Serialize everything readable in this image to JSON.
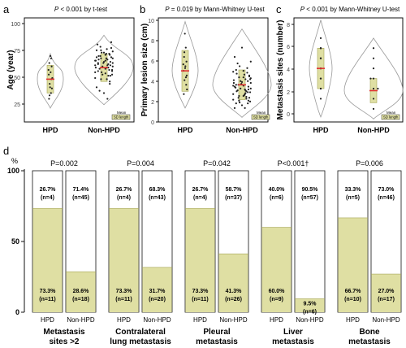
{
  "colors": {
    "fill": "#dfdfa3",
    "bar_stroke": "#a7a758",
    "violin": "#999999",
    "mean": "#e03131",
    "point": "#222222",
    "border": "#111111"
  },
  "panels": [
    {
      "letter": "a"
    },
    {
      "letter": "b"
    },
    {
      "letter": "c"
    },
    {
      "letter": "d"
    }
  ],
  "legend": {
    "mean_label": "Mean",
    "sd_label": "SD length"
  },
  "chart_data": [
    {
      "id": "a",
      "type": "violin",
      "title_pvalue": "P",
      "title_rest": " < 0.001 by t-test",
      "ylabel": "Age (year)",
      "yticks": [
        "100",
        "75",
        "50",
        "25"
      ],
      "ylim": [
        15,
        105
      ],
      "categories": [
        "HPD",
        "Non-HPD"
      ],
      "groups": [
        {
          "name": "HPD",
          "mean": 52,
          "sd": 12,
          "min": 27,
          "max": 74,
          "points": [
            [
              -0.1,
              35
            ],
            [
              0.05,
              40
            ],
            [
              0.12,
              44
            ],
            [
              -0.05,
              48
            ],
            [
              0.08,
              52
            ],
            [
              -0.12,
              56
            ],
            [
              0.02,
              58
            ],
            [
              0.1,
              63
            ],
            [
              -0.08,
              66
            ],
            [
              0.06,
              70
            ],
            [
              -0.02,
              45
            ],
            [
              0.15,
              53
            ],
            [
              -0.14,
              60
            ],
            [
              0.0,
              72
            ],
            [
              -0.06,
              38
            ]
          ]
        },
        {
          "name": "Non-HPD",
          "mean": 62,
          "sd": 12,
          "min": 30,
          "max": 90,
          "points": [
            [
              -0.25,
              45
            ],
            [
              0.2,
              48
            ],
            [
              -0.1,
              52
            ],
            [
              0.15,
              55
            ],
            [
              0.05,
              57
            ],
            [
              -0.3,
              58
            ],
            [
              0.28,
              60
            ],
            [
              -0.15,
              61
            ],
            [
              0.1,
              62
            ],
            [
              -0.05,
              63
            ],
            [
              0.22,
              64
            ],
            [
              -0.2,
              65
            ],
            [
              0.3,
              66
            ],
            [
              0.0,
              67
            ],
            [
              -0.28,
              68
            ],
            [
              0.12,
              69
            ],
            [
              -0.1,
              70
            ],
            [
              0.25,
              71
            ],
            [
              -0.18,
              72
            ],
            [
              0.05,
              73
            ],
            [
              0.18,
              74
            ],
            [
              -0.08,
              75
            ],
            [
              0.3,
              76
            ],
            [
              -0.25,
              77
            ],
            [
              0.1,
              78
            ],
            [
              -0.12,
              80
            ],
            [
              0.2,
              50
            ],
            [
              -0.3,
              53
            ],
            [
              0.28,
              56
            ],
            [
              -0.2,
              59
            ],
            [
              0.15,
              62
            ],
            [
              -0.02,
              66
            ],
            [
              0.08,
              70
            ],
            [
              -0.22,
              82
            ],
            [
              0.25,
              84
            ],
            [
              0.0,
              40
            ],
            [
              -0.15,
              42
            ],
            [
              0.12,
              35
            ],
            [
              0.3,
              63
            ],
            [
              -0.3,
              64
            ],
            [
              0.05,
              68
            ],
            [
              0.18,
              60
            ],
            [
              -0.08,
              58
            ],
            [
              0.22,
              55
            ],
            [
              -0.12,
              72
            ],
            [
              0.0,
              75
            ],
            [
              0.3,
              70
            ],
            [
              -0.28,
              62
            ],
            [
              0.15,
              65
            ],
            [
              -0.18,
              69
            ],
            [
              0.08,
              74
            ],
            [
              0.22,
              67
            ],
            [
              -0.05,
              56
            ],
            [
              0.1,
              52
            ],
            [
              -0.25,
              71
            ],
            [
              0.28,
              59
            ],
            [
              -0.1,
              77
            ],
            [
              0.2,
              73
            ],
            [
              0.05,
              61
            ],
            [
              -0.2,
              66
            ],
            [
              0.12,
              64
            ],
            [
              -0.3,
              68
            ],
            [
              0.25,
              79
            ]
          ]
        }
      ],
      "legend": {
        "mean": "Mean",
        "sd": "SD length"
      }
    },
    {
      "id": "b",
      "type": "violin",
      "title_pvalue": "P",
      "title_rest": " = 0.019 by Mann-Whitney U-test",
      "ylabel": "Primary lesion size (cm)",
      "yticks": [
        "10",
        "8",
        "6",
        "4",
        "2",
        "0"
      ],
      "ylim": [
        0,
        11.2
      ],
      "categories": [
        "HPD",
        "Non-HPD"
      ],
      "groups": [
        {
          "name": "HPD",
          "mean": 5.5,
          "sd": 2.2,
          "min": 1.5,
          "max": 10.8,
          "points": [
            [
              -0.1,
              3.0
            ],
            [
              0.08,
              4.0
            ],
            [
              -0.05,
              4.5
            ],
            [
              0.12,
              5.0
            ],
            [
              -0.12,
              5.5
            ],
            [
              0.02,
              6.0
            ],
            [
              0.1,
              6.5
            ],
            [
              -0.08,
              7.0
            ],
            [
              0.05,
              8.0
            ],
            [
              -0.02,
              9.5
            ],
            [
              0.14,
              3.5
            ],
            [
              -0.14,
              6.2
            ],
            [
              0.0,
              5.8
            ],
            [
              0.06,
              4.8
            ],
            [
              -0.06,
              7.5
            ]
          ]
        },
        {
          "name": "Non-HPD",
          "mean": 4.0,
          "sd": 1.6,
          "min": 0.5,
          "max": 10.0,
          "points": [
            [
              -0.25,
              1.5
            ],
            [
              0.2,
              2.0
            ],
            [
              -0.1,
              2.3
            ],
            [
              0.15,
              2.5
            ],
            [
              0.05,
              2.8
            ],
            [
              -0.3,
              3.0
            ],
            [
              0.28,
              3.2
            ],
            [
              -0.15,
              3.4
            ],
            [
              0.1,
              3.5
            ],
            [
              -0.05,
              3.6
            ],
            [
              0.22,
              3.8
            ],
            [
              -0.2,
              4.0
            ],
            [
              0.3,
              4.2
            ],
            [
              0.0,
              4.3
            ],
            [
              -0.28,
              4.5
            ],
            [
              0.12,
              4.6
            ],
            [
              -0.1,
              4.8
            ],
            [
              0.25,
              5.0
            ],
            [
              -0.18,
              5.2
            ],
            [
              0.05,
              5.5
            ],
            [
              0.18,
              5.8
            ],
            [
              -0.08,
              6.0
            ],
            [
              0.3,
              6.5
            ],
            [
              -0.25,
              7.0
            ],
            [
              0.1,
              3.0
            ],
            [
              -0.12,
              2.6
            ],
            [
              0.2,
              4.4
            ],
            [
              -0.3,
              3.9
            ],
            [
              0.28,
              2.2
            ],
            [
              -0.2,
              5.6
            ],
            [
              0.15,
              3.3
            ],
            [
              -0.02,
              4.1
            ],
            [
              0.08,
              2.9
            ],
            [
              -0.22,
              3.7
            ],
            [
              0.25,
              4.9
            ],
            [
              0.0,
              1.8
            ],
            [
              -0.15,
              6.3
            ],
            [
              0.12,
              3.1
            ],
            [
              0.3,
              4.7
            ],
            [
              -0.3,
              2.4
            ],
            [
              0.05,
              3.9
            ],
            [
              0.18,
              5.3
            ],
            [
              -0.08,
              2.1
            ],
            [
              0.22,
              3.5
            ],
            [
              -0.12,
              4.0
            ],
            [
              0.0,
              8.0
            ],
            [
              0.3,
              3.6
            ],
            [
              -0.28,
              4.2
            ],
            [
              0.15,
              2.7
            ],
            [
              -0.18,
              3.3
            ],
            [
              0.08,
              5.1
            ],
            [
              0.22,
              2.3
            ],
            [
              -0.05,
              4.4
            ],
            [
              0.1,
              1.5
            ],
            [
              -0.25,
              3.8
            ],
            [
              0.28,
              4.6
            ],
            [
              -0.1,
              2.8
            ],
            [
              0.2,
              3.2
            ],
            [
              0.05,
              4.8
            ],
            [
              -0.2,
              2.0
            ],
            [
              0.12,
              3.4
            ],
            [
              -0.3,
              5.4
            ],
            [
              0.25,
              2.6
            ]
          ]
        }
      ],
      "legend": {
        "mean": "Mean",
        "sd": "SD length"
      }
    },
    {
      "id": "c",
      "type": "violin",
      "title_pvalue": "P",
      "title_rest": " < 0.001 by Mann-Whitney U-test",
      "ylabel": "Metastasis sites (number)",
      "yticks": [
        "8",
        "6",
        "4",
        "2",
        "0"
      ],
      "ylim": [
        -1.3,
        9.0
      ],
      "categories": [
        "HPD",
        "Non-HPD"
      ],
      "groups": [
        {
          "name": "HPD",
          "mean": 4.0,
          "sd": 2.0,
          "min": -0.8,
          "max": 8.8,
          "points": [
            [
              0.0,
              1
            ],
            [
              0.0,
              2
            ],
            [
              0.0,
              3
            ],
            [
              0.0,
              4
            ],
            [
              0.0,
              5
            ],
            [
              0.0,
              6
            ],
            [
              0.0,
              7
            ],
            [
              0.0,
              3
            ],
            [
              0.0,
              4
            ],
            [
              0.0,
              5
            ],
            [
              0.0,
              6
            ],
            [
              0.0,
              2
            ],
            [
              0.0,
              4
            ],
            [
              0.0,
              5
            ],
            [
              0.0,
              6
            ]
          ]
        },
        {
          "name": "Non-HPD",
          "mean": 1.8,
          "sd": 1.2,
          "min": -1.0,
          "max": 7.0,
          "points": [
            [
              0.0,
              0
            ],
            [
              0.0,
              1
            ],
            [
              0.0,
              2
            ],
            [
              0.0,
              3
            ],
            [
              0.0,
              4
            ],
            [
              0.0,
              5
            ],
            [
              0.0,
              6
            ],
            [
              0.15,
              2
            ],
            [
              -0.1,
              3
            ]
          ]
        }
      ],
      "legend": {
        "mean": "Mean",
        "sd": "SD length"
      }
    },
    {
      "id": "d",
      "type": "bar",
      "stacked": true,
      "ylabel": "%",
      "yticks": [
        "100",
        "50",
        "0"
      ],
      "ylim": [
        0,
        100
      ],
      "groups": [
        {
          "label": "Metastasis sites >2",
          "title_lines": [
            "Metastasis",
            "sites >2"
          ],
          "pvalue": "P=0.002",
          "bars": [
            {
              "name": "HPD",
              "top_pct": "26.7%",
              "top_n": "(n=4)",
              "bottom_pct": "73.3%",
              "bottom_n": "(n=11)",
              "value": 73.3
            },
            {
              "name": "Non-HPD",
              "top_pct": "71.4%",
              "top_n": "(n=45)",
              "bottom_pct": "28.6%",
              "bottom_n": "(n=18)",
              "value": 28.6
            }
          ]
        },
        {
          "label": "Contralateral lung metastasis",
          "title_lines": [
            "Contralateral",
            "lung metastasis"
          ],
          "pvalue": "P=0.004",
          "bars": [
            {
              "name": "HPD",
              "top_pct": "26.7%",
              "top_n": "(n=4)",
              "bottom_pct": "73.3%",
              "bottom_n": "(n=11)",
              "value": 73.3
            },
            {
              "name": "Non-HPD",
              "top_pct": "68.3%",
              "top_n": "(n=43)",
              "bottom_pct": "31.7%",
              "bottom_n": "(n=20)",
              "value": 31.7
            }
          ]
        },
        {
          "label": "Pleural metastasis",
          "title_lines": [
            "Pleural",
            "metastasis"
          ],
          "pvalue": "P=0.042",
          "bars": [
            {
              "name": "HPD",
              "top_pct": "26.7%",
              "top_n": "(n=4)",
              "bottom_pct": "73.3%",
              "bottom_n": "(n=11)",
              "value": 73.3
            },
            {
              "name": "Non-HPD",
              "top_pct": "58.7%",
              "top_n": "(n=37)",
              "bottom_pct": "41.3%",
              "bottom_n": "(n=26)",
              "value": 41.3
            }
          ]
        },
        {
          "label": "Liver metastasis",
          "title_lines": [
            "Liver",
            "metastasis"
          ],
          "pvalue": "P<0.001†",
          "bars": [
            {
              "name": "HPD",
              "top_pct": "40.0%",
              "top_n": "(n=6)",
              "bottom_pct": "60.0%",
              "bottom_n": "(n=9)",
              "value": 60.0
            },
            {
              "name": "Non-HPD",
              "top_pct": "90.5%",
              "top_n": "(n=57)",
              "bottom_pct": "9.5%",
              "bottom_n": "(n=6)",
              "value": 9.5
            }
          ]
        },
        {
          "label": "Bone metastasis",
          "title_lines": [
            "Bone",
            "metastasis"
          ],
          "pvalue": "P=0.006",
          "bars": [
            {
              "name": "HPD",
              "top_pct": "33.3%",
              "top_n": "(n=5)",
              "bottom_pct": "66.7%",
              "bottom_n": "(n=10)",
              "value": 66.7
            },
            {
              "name": "Non-HPD",
              "top_pct": "73.0%",
              "top_n": "(n=46)",
              "bottom_pct": "27.0%",
              "bottom_n": "(n=17)",
              "value": 27.0
            }
          ]
        }
      ]
    }
  ]
}
